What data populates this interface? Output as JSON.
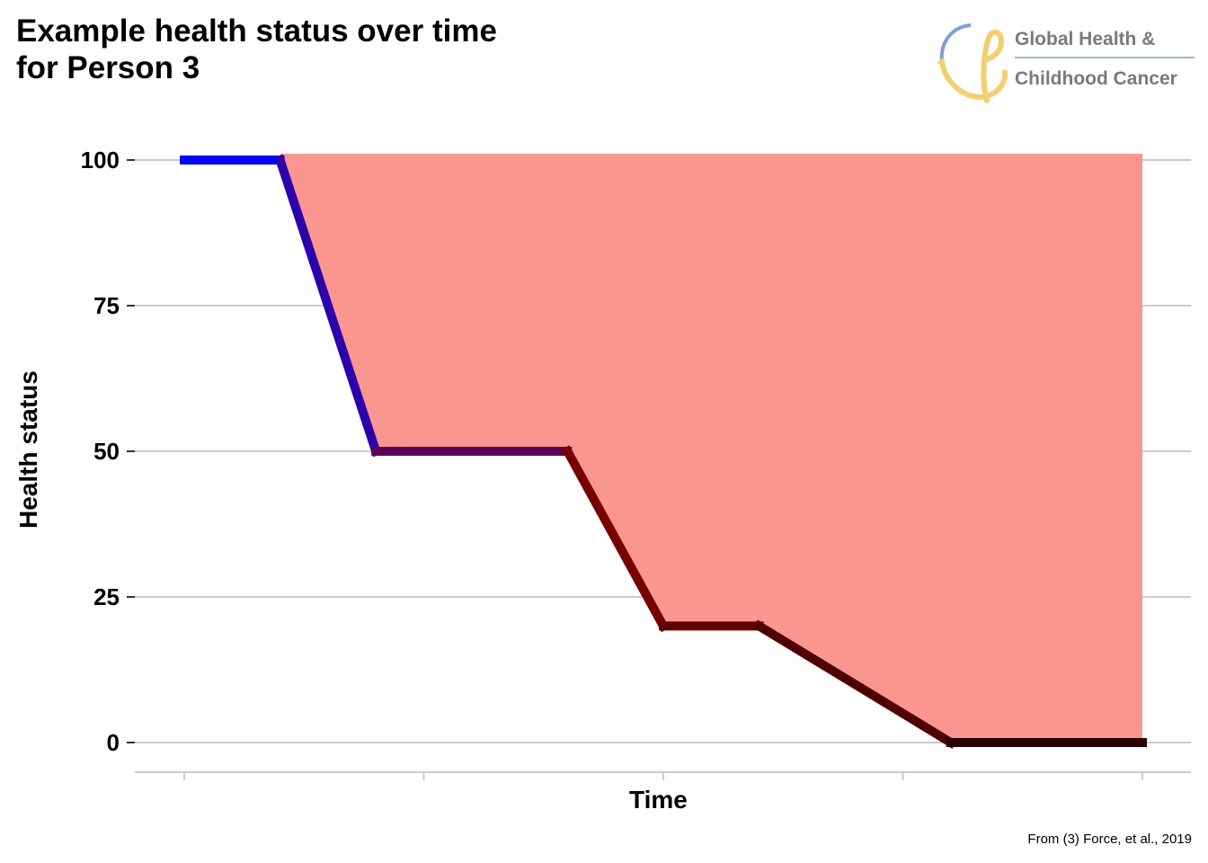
{
  "title_line1": "Example health status over time",
  "title_line2": "for Person 3",
  "logo": {
    "line1": "Global Health &",
    "line2": "Childhood Cancer"
  },
  "caption": "From (3) Force, et al., 2019",
  "colors": {
    "area": "#f8948d",
    "gradient_start": "#0000ff",
    "gradient_mid": "#8b0000",
    "gradient_end": "#000000",
    "grid": "#cccccc"
  },
  "chart_data": {
    "type": "line",
    "xlabel": "Time",
    "ylabel": "Health status",
    "ylim": [
      0,
      100
    ],
    "yticks": [
      "0",
      "25",
      "50",
      "75",
      "100"
    ],
    "x_ticks_count": 5,
    "grid": "horizontal",
    "series": [
      {
        "points": [
          {
            "x": 0,
            "y": 100
          },
          {
            "x": 0.2,
            "y": 100
          },
          {
            "x": 0.4,
            "y": 50
          },
          {
            "x": 0.8,
            "y": 50
          },
          {
            "x": 1.0,
            "y": 20
          },
          {
            "x": 1.2,
            "y": 20
          },
          {
            "x": 1.6,
            "y": 0
          },
          {
            "x": 2.0,
            "y": 0
          }
        ]
      }
    ],
    "shaded_area": "between line and 100 (health lost)"
  }
}
